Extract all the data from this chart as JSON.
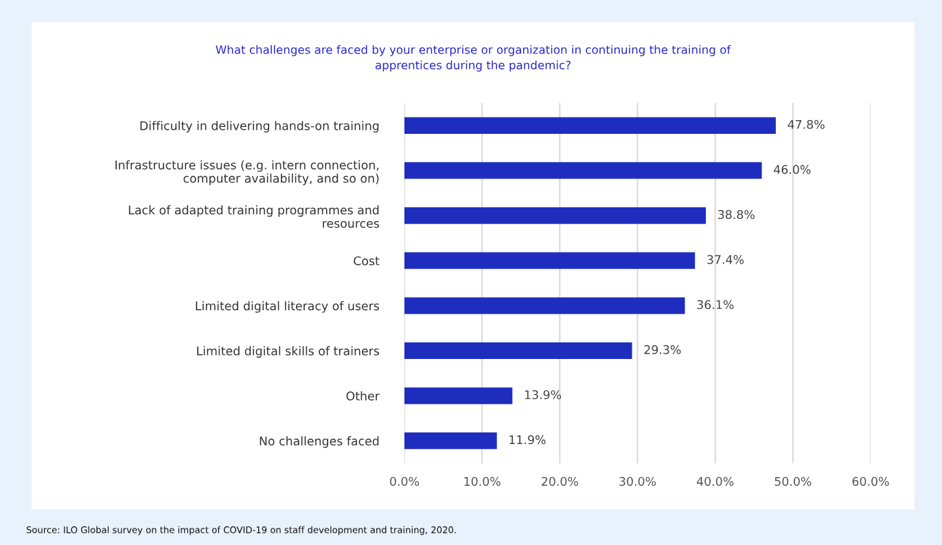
{
  "chart_data": {
    "type": "bar",
    "orientation": "horizontal",
    "title": "What challenges are faced by your enterprise or organization in continuing the training of\napprentices during the pandemic?",
    "categories": [
      "Difficulty in delivering hands-on training",
      "Infrastructure issues (e.g. intern connection,\ncomputer availability, and so on)",
      "Lack of adapted training programmes and\nresources",
      "Cost",
      "Limited digital literacy of users",
      "Limited digital skills of trainers",
      "Other",
      "No challenges faced"
    ],
    "values": [
      47.8,
      46.0,
      38.8,
      37.4,
      36.1,
      29.3,
      13.9,
      11.9
    ],
    "value_labels": [
      "47.8%",
      "46.0%",
      "38.8%",
      "37.4%",
      "36.1%",
      "29.3%",
      "13.9%",
      "11.9%"
    ],
    "color": "#1f2dbf",
    "xlim": [
      0,
      60
    ],
    "xticks": [
      {
        "value": 0,
        "label": "0.0%"
      },
      {
        "value": 10,
        "label": "10.0%"
      },
      {
        "value": 20,
        "label": "20.0%"
      },
      {
        "value": 30,
        "label": "30.0%"
      },
      {
        "value": 40,
        "label": "40.0%"
      },
      {
        "value": 50,
        "label": "50.0%"
      },
      {
        "value": 60,
        "label": "60.0%"
      }
    ],
    "grid": "x",
    "legend": false,
    "annotations": [
      "Source: ILO Global survey on the impact of COVID-19 on staff development and training, 2020."
    ]
  }
}
